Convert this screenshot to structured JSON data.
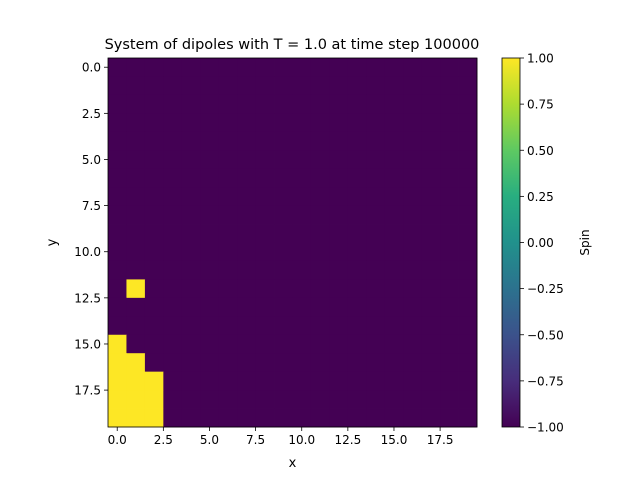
{
  "chart_data": {
    "type": "heatmap",
    "title": "System of dipoles with T = 1.0 at time step 100000",
    "xlabel": "x",
    "ylabel": "y",
    "colorbar_label": "Spin",
    "colormap": "viridis",
    "low_color": "#440154",
    "high_color": "#fde725",
    "grid_size": [
      20,
      20
    ],
    "x_range": [
      -0.5,
      19.5
    ],
    "y_range": [
      19.5,
      -0.5
    ],
    "x_ticks": [
      0,
      2.5,
      5,
      7.5,
      10,
      12.5,
      15,
      17.5
    ],
    "x_tick_labels": [
      "0.0",
      "2.5",
      "5.0",
      "7.5",
      "10.0",
      "12.5",
      "15.0",
      "17.5"
    ],
    "y_ticks": [
      0,
      2.5,
      5,
      7.5,
      10,
      12.5,
      15,
      17.5
    ],
    "y_tick_labels": [
      "0.0",
      "2.5",
      "5.0",
      "7.5",
      "10.0",
      "12.5",
      "15.0",
      "17.5"
    ],
    "color_range": [
      -1,
      1
    ],
    "colorbar_ticks": [
      1.0,
      0.75,
      0.5,
      0.25,
      0.0,
      -0.25,
      -0.5,
      -0.75,
      -1.0
    ],
    "colorbar_tick_labels": [
      "1.00",
      "0.75",
      "0.50",
      "0.25",
      "0.00",
      "−0.25",
      "−0.50",
      "−0.75",
      "−1.00"
    ],
    "background_value": -1,
    "up_spins": [
      [
        1,
        12
      ],
      [
        0,
        15
      ],
      [
        0,
        16
      ],
      [
        1,
        16
      ],
      [
        0,
        17
      ],
      [
        1,
        17
      ],
      [
        2,
        17
      ],
      [
        0,
        18
      ],
      [
        1,
        18
      ],
      [
        2,
        18
      ],
      [
        0,
        19
      ],
      [
        1,
        19
      ],
      [
        2,
        19
      ]
    ]
  }
}
